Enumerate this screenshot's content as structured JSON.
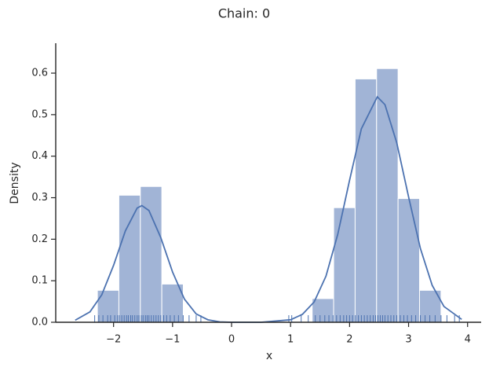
{
  "chart_data": {
    "type": "histogram",
    "title": "Chain: 0",
    "xlabel": "x",
    "ylabel": "Density",
    "bins": [
      -2.274,
      -1.91,
      -1.546,
      -1.182,
      -0.818,
      -0.454,
      -0.09,
      0.274,
      0.638,
      1.002,
      1.366,
      1.73,
      2.094,
      2.458,
      2.822,
      3.186,
      3.55
    ],
    "values": [
      0.077,
      0.306,
      0.327,
      0.092,
      0,
      0,
      0,
      0,
      0,
      0,
      0.057,
      0.276,
      0.586,
      0.611,
      0.298,
      0.077
    ],
    "color": "#a1b4d6",
    "kde": {
      "color": "#4c72b0",
      "x": [
        -2.65,
        -2.4,
        -2.2,
        -2.0,
        -1.8,
        -1.6,
        -1.52,
        -1.4,
        -1.2,
        -1.0,
        -0.8,
        -0.6,
        -0.4,
        -0.2,
        0,
        0.5,
        1.0,
        1.2,
        1.4,
        1.6,
        1.8,
        2.0,
        2.2,
        2.47,
        2.6,
        2.8,
        3.0,
        3.2,
        3.4,
        3.6,
        3.9
      ],
      "y": [
        0.005,
        0.025,
        0.066,
        0.137,
        0.22,
        0.275,
        0.281,
        0.269,
        0.204,
        0.121,
        0.056,
        0.02,
        0.006,
        0.001,
        0,
        0,
        0.006,
        0.019,
        0.049,
        0.111,
        0.212,
        0.342,
        0.466,
        0.543,
        0.524,
        0.432,
        0.302,
        0.178,
        0.089,
        0.038,
        0.007
      ]
    },
    "rug": [
      -2.32,
      -2.25,
      -2.18,
      -2.1,
      -2.05,
      -1.98,
      -1.93,
      -1.9,
      -1.86,
      -1.82,
      -1.78,
      -1.75,
      -1.71,
      -1.68,
      -1.64,
      -1.6,
      -1.57,
      -1.53,
      -1.5,
      -1.46,
      -1.43,
      -1.4,
      -1.36,
      -1.32,
      -1.28,
      -1.24,
      -1.2,
      -1.15,
      -1.1,
      -1.04,
      -0.97,
      -0.9,
      -0.82,
      -0.72,
      -0.6,
      -0.52,
      0.97,
      1.02,
      1.18,
      1.3,
      1.42,
      1.5,
      1.58,
      1.65,
      1.72,
      1.78,
      1.84,
      1.9,
      1.95,
      2.0,
      2.05,
      2.1,
      2.15,
      2.2,
      2.25,
      2.3,
      2.35,
      2.4,
      2.44,
      2.48,
      2.52,
      2.56,
      2.6,
      2.65,
      2.7,
      2.75,
      2.8,
      2.86,
      2.92,
      2.98,
      3.05,
      3.12,
      3.2,
      3.28,
      3.36,
      3.45,
      3.55,
      3.65,
      3.78,
      3.86
    ],
    "xlim": [
      -2.98,
      4.23
    ],
    "ylim": [
      0,
      0.672
    ],
    "xticks": [
      {
        "value": -2,
        "label": "−2"
      },
      {
        "value": -1,
        "label": "−1"
      },
      0,
      1,
      2,
      3,
      4
    ],
    "yticks": [
      {
        "value": 0,
        "label": "0.0"
      },
      0.1,
      0.2,
      0.3,
      0.4,
      0.5,
      0.6
    ]
  }
}
